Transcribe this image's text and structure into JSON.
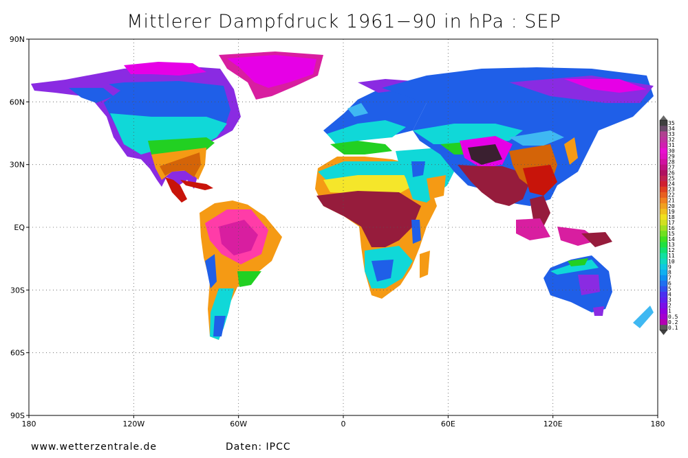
{
  "title": "Mittlerer Dampfdruck 1961−90 in hPa : SEP",
  "footer": {
    "website": "www.wetterzentrale.de",
    "source": "Daten: IPCC"
  },
  "y_ticks": [
    {
      "label": "90N",
      "lat": 90
    },
    {
      "label": "60N",
      "lat": 60
    },
    {
      "label": "30N",
      "lat": 30
    },
    {
      "label": "EQ",
      "lat": 0
    },
    {
      "label": "30S",
      "lat": -30
    },
    {
      "label": "60S",
      "lat": -60
    },
    {
      "label": "90S",
      "lat": -90
    }
  ],
  "x_ticks": [
    {
      "label": "180",
      "lon": -180
    },
    {
      "label": "120W",
      "lon": -120
    },
    {
      "label": "60W",
      "lon": -60
    },
    {
      "label": "0",
      "lon": 0
    },
    {
      "label": "60E",
      "lon": 60
    },
    {
      "label": "120E",
      "lon": 120
    },
    {
      "label": "180",
      "lon": 180
    }
  ],
  "legend": {
    "labels": [
      "0.1",
      "0.2",
      "0.5",
      "1",
      "2",
      "3",
      "4",
      "5",
      "6",
      "7",
      "8",
      "9",
      "10",
      "11",
      "12",
      "13",
      "14",
      "15",
      "16",
      "17",
      "18",
      "19",
      "20",
      "21",
      "22",
      "23",
      "24",
      "25",
      "26",
      "27",
      "28",
      "29",
      "30",
      "31",
      "32",
      "33",
      "34",
      "35"
    ]
  },
  "colors": {
    "purple": "#8a2be2",
    "magenta": "#e600e6",
    "blue": "#1f5fe8",
    "lightblue": "#3fb8f2",
    "cyan": "#10d8d8",
    "green": "#22d022",
    "yellow": "#f5e62a",
    "orange": "#f59a14",
    "darkorange": "#d46408",
    "red": "#c8140a",
    "darkred": "#961c3c",
    "pink": "#ff3ca8",
    "deepmagenta": "#d81ea0",
    "black": "#3a2030"
  }
}
